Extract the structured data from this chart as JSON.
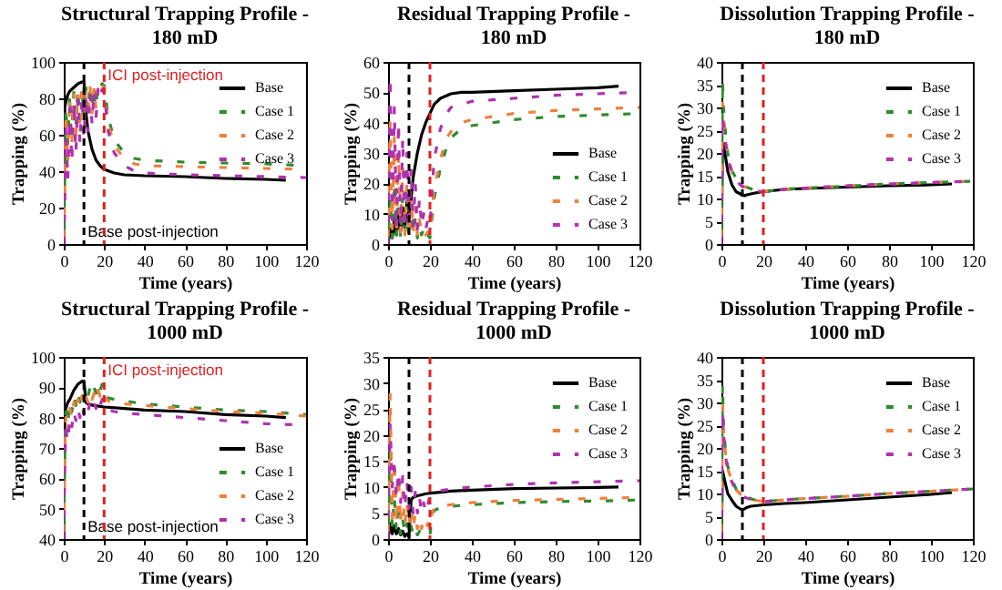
{
  "chart_data": [
    {
      "type": "line",
      "title": "Structural  Trapping Profile - 180 mD",
      "xlabel": "Time (years)",
      "ylabel": "Trapping (%)",
      "xlim": [
        0,
        120
      ],
      "xticks": [
        0,
        20,
        40,
        60,
        80,
        100,
        120
      ],
      "ylim": [
        0,
        100
      ],
      "yticks": [
        0,
        20,
        40,
        60,
        80,
        100
      ],
      "legend": "top right",
      "ref_lines": [
        {
          "axis": "x",
          "value": 10,
          "label": "Base post-injection",
          "color": "#000000",
          "line_style": "dashed"
        },
        {
          "axis": "x",
          "value": 20,
          "label": "ICI post-injection",
          "color": "#e02020",
          "line_style": "dashed"
        }
      ],
      "series": [
        {
          "name": "Base",
          "color": "#000000",
          "line_style": "solid",
          "x": [
            0,
            0.5,
            1,
            2,
            3,
            5,
            7,
            9,
            10,
            11,
            12,
            14,
            16,
            18,
            20,
            25,
            30,
            40,
            60,
            80,
            100,
            110
          ],
          "values": [
            0,
            75,
            78,
            82,
            84,
            86,
            88,
            89,
            89,
            72,
            62,
            52,
            46,
            43,
            41,
            39,
            38,
            37.5,
            37,
            36,
            35.5,
            35
          ]
        },
        {
          "name": "Case 1",
          "color": "#2e8b2e",
          "line_style": "dashed",
          "x": [
            0,
            0.5,
            1,
            2,
            3,
            4,
            5,
            6,
            7,
            8,
            9,
            10,
            11,
            12,
            13,
            14,
            15,
            16,
            17,
            18,
            19,
            20,
            22,
            25,
            30,
            35,
            40,
            60,
            80,
            100,
            120
          ],
          "values": [
            0,
            40,
            75,
            55,
            82,
            60,
            84,
            65,
            85,
            68,
            86,
            70,
            86,
            72,
            87,
            74,
            87,
            76,
            88,
            86,
            88,
            87,
            70,
            57,
            50,
            47,
            46,
            45,
            44.5,
            44,
            43
          ]
        },
        {
          "name": "Case 2",
          "color": "#f07f3c",
          "line_style": "dashed",
          "x": [
            0,
            0.5,
            1,
            2,
            3,
            4,
            5,
            6,
            7,
            8,
            9,
            10,
            11,
            12,
            13,
            14,
            15,
            16,
            17,
            18,
            19,
            20,
            22,
            25,
            30,
            35,
            40,
            60,
            80,
            100,
            120
          ],
          "values": [
            0,
            30,
            72,
            45,
            80,
            55,
            82,
            60,
            83,
            63,
            84,
            66,
            85,
            70,
            86,
            72,
            86,
            74,
            87,
            84,
            87,
            86,
            66,
            54,
            47,
            44,
            43,
            42.5,
            42,
            41.5,
            41
          ]
        },
        {
          "name": "Case 3",
          "color": "#b030b0",
          "line_style": "dashed",
          "x": [
            0,
            0.5,
            1,
            2,
            3,
            4,
            5,
            6,
            7,
            8,
            9,
            10,
            11,
            12,
            13,
            14,
            15,
            16,
            17,
            18,
            19,
            20,
            22,
            25,
            30,
            35,
            40,
            60,
            80,
            100,
            120
          ],
          "values": [
            0,
            20,
            65,
            35,
            75,
            45,
            78,
            50,
            80,
            55,
            81,
            58,
            82,
            62,
            83,
            66,
            84,
            70,
            85,
            80,
            85,
            83,
            62,
            50,
            43,
            40,
            39,
            38,
            37.5,
            37,
            36.5
          ]
        }
      ]
    },
    {
      "type": "line",
      "title": "Residual  Trapping Profile - 180 mD",
      "xlabel": "Time (years)",
      "ylabel": "Trapping (%)",
      "xlim": [
        0,
        120
      ],
      "xticks": [
        0,
        20,
        40,
        60,
        80,
        100,
        120
      ],
      "ylim": [
        0,
        60
      ],
      "yticks": [
        0,
        10,
        20,
        30,
        40,
        50,
        60
      ],
      "legend": "bottom right",
      "ref_lines": [
        {
          "axis": "x",
          "value": 10,
          "color": "#000000",
          "line_style": "dashed"
        },
        {
          "axis": "x",
          "value": 20,
          "color": "#e02020",
          "line_style": "dashed"
        }
      ],
      "series": [
        {
          "name": "Base",
          "color": "#000000",
          "line_style": "solid",
          "x": [
            0,
            1,
            2,
            3,
            4,
            5,
            6,
            7,
            8,
            9,
            10,
            11,
            12,
            14,
            16,
            18,
            20,
            22,
            25,
            30,
            35,
            40,
            60,
            80,
            100,
            110
          ],
          "values": [
            0,
            5,
            2,
            8,
            3,
            10,
            4,
            12,
            5,
            14,
            10,
            15,
            22,
            30,
            36,
            40,
            43,
            46,
            48,
            49.5,
            50,
            50,
            50.5,
            51,
            51.5,
            52
          ]
        },
        {
          "name": "Case 1",
          "color": "#2e8b2e",
          "line_style": "dashed",
          "x": [
            0,
            1,
            2,
            3,
            4,
            5,
            6,
            7,
            8,
            9,
            10,
            11,
            12,
            13,
            14,
            15,
            16,
            17,
            18,
            19,
            20,
            22,
            25,
            28,
            30,
            35,
            40,
            60,
            80,
            100,
            120
          ],
          "values": [
            0,
            15,
            2,
            20,
            3,
            18,
            2,
            15,
            3,
            12,
            2,
            10,
            3,
            8,
            2,
            6,
            3,
            5,
            2,
            3,
            2,
            15,
            25,
            32,
            35,
            38,
            39,
            41,
            42,
            42.5,
            43
          ]
        },
        {
          "name": "Case 2",
          "color": "#f07f3c",
          "line_style": "dashed",
          "x": [
            0,
            1,
            2,
            3,
            4,
            5,
            6,
            7,
            8,
            9,
            10,
            11,
            12,
            13,
            14,
            15,
            16,
            17,
            18,
            19,
            20,
            22,
            25,
            28,
            30,
            35,
            40,
            60,
            80,
            100,
            120
          ],
          "values": [
            0,
            40,
            5,
            35,
            3,
            30,
            4,
            25,
            3,
            20,
            3,
            15,
            4,
            12,
            3,
            8,
            4,
            5,
            3,
            4,
            3,
            18,
            28,
            35,
            37,
            40,
            41,
            43,
            44,
            44.5,
            45
          ]
        },
        {
          "name": "Case 3",
          "color": "#b030b0",
          "line_style": "dashed",
          "x": [
            0,
            1,
            2,
            3,
            4,
            5,
            6,
            7,
            8,
            9,
            10,
            11,
            12,
            13,
            14,
            15,
            16,
            17,
            18,
            19,
            20,
            22,
            25,
            28,
            30,
            35,
            40,
            60,
            80,
            100,
            120
          ],
          "values": [
            0,
            55,
            8,
            45,
            5,
            40,
            6,
            35,
            5,
            30,
            5,
            25,
            6,
            20,
            5,
            15,
            6,
            10,
            5,
            8,
            6,
            28,
            38,
            43,
            45,
            46,
            47,
            48,
            49,
            49.5,
            50
          ]
        }
      ]
    },
    {
      "type": "line",
      "title": "Dissolution  Trapping Profile - 180 mD",
      "xlabel": "Time (years)",
      "ylabel": "Trapping (%)",
      "xlim": [
        0,
        120
      ],
      "xticks": [
        0,
        20,
        40,
        60,
        80,
        100,
        120
      ],
      "ylim": [
        0,
        40
      ],
      "yticks": [
        0,
        5,
        10,
        15,
        20,
        25,
        30,
        35,
        40
      ],
      "legend": "top right",
      "ref_lines": [
        {
          "axis": "x",
          "value": 10,
          "color": "#000000",
          "line_style": "dashed"
        },
        {
          "axis": "x",
          "value": 20,
          "color": "#e02020",
          "line_style": "dashed"
        }
      ],
      "series": [
        {
          "name": "Base",
          "color": "#000000",
          "line_style": "solid",
          "x": [
            0,
            0.5,
            1,
            2,
            3,
            5,
            7,
            9,
            10,
            11,
            12,
            14,
            16,
            20,
            30,
            40,
            60,
            80,
            100,
            110
          ],
          "values": [
            0,
            20,
            22,
            19,
            16,
            13,
            11.5,
            11,
            10.8,
            10.6,
            10.8,
            11,
            11.2,
            11.5,
            12,
            12.2,
            12.5,
            12.8,
            13,
            13.2
          ]
        },
        {
          "name": "Case 1",
          "color": "#2e8b2e",
          "line_style": "dashed",
          "x": [
            0,
            0.5,
            1,
            2,
            3,
            5,
            7,
            9,
            10,
            12,
            15,
            18,
            20,
            25,
            30,
            40,
            60,
            80,
            100,
            120
          ],
          "values": [
            0,
            36,
            30,
            24,
            20,
            16,
            14.5,
            13.5,
            13,
            12.5,
            12,
            11.5,
            11.3,
            11.8,
            12,
            12.3,
            12.7,
            13.2,
            13.5,
            13.8
          ]
        },
        {
          "name": "Case 2",
          "color": "#f07f3c",
          "line_style": "dashed",
          "x": [
            0,
            0.5,
            1,
            2,
            3,
            5,
            7,
            9,
            10,
            12,
            15,
            18,
            20,
            25,
            30,
            40,
            60,
            80,
            100,
            120
          ],
          "values": [
            0,
            31,
            28,
            23,
            19.5,
            16,
            14.2,
            13.3,
            12.8,
            12.3,
            11.9,
            11.6,
            11.5,
            11.8,
            12,
            12.3,
            12.8,
            13.2,
            13.5,
            13.8
          ]
        },
        {
          "name": "Case 3",
          "color": "#b030b0",
          "line_style": "dashed",
          "x": [
            0,
            0.5,
            1,
            2,
            3,
            5,
            7,
            9,
            10,
            12,
            15,
            18,
            20,
            25,
            30,
            40,
            60,
            80,
            100,
            120
          ],
          "values": [
            0,
            28,
            26,
            22,
            19,
            15.5,
            14,
            13,
            12.6,
            12.2,
            11.8,
            11.6,
            11.5,
            11.8,
            12,
            12.3,
            12.8,
            13.2,
            13.5,
            13.8
          ]
        }
      ]
    },
    {
      "type": "line",
      "title": "Structural  Trapping Profile - 1000 mD",
      "xlabel": "Time (years)",
      "ylabel": "Trapping (%)",
      "xlim": [
        0,
        120
      ],
      "xticks": [
        0,
        20,
        40,
        60,
        80,
        100,
        120
      ],
      "ylim": [
        40,
        100
      ],
      "yticks": [
        40,
        50,
        60,
        70,
        80,
        90,
        100
      ],
      "legend": "bottom right",
      "ref_lines": [
        {
          "axis": "x",
          "value": 10,
          "label": "Base post-injection",
          "color": "#000000",
          "line_style": "dashed"
        },
        {
          "axis": "x",
          "value": 20,
          "label": "ICI post-injection",
          "color": "#e02020",
          "line_style": "dashed"
        }
      ],
      "series": [
        {
          "name": "Base",
          "color": "#000000",
          "line_style": "solid",
          "x": [
            0,
            0.5,
            1,
            2,
            3,
            5,
            7,
            9,
            10,
            11,
            12,
            15,
            20,
            30,
            40,
            60,
            80,
            100,
            110
          ],
          "values": [
            40,
            80,
            83,
            85,
            86,
            89,
            91,
            92,
            92,
            85,
            84.5,
            84,
            83.5,
            83,
            82.5,
            82,
            81,
            80.5,
            80
          ]
        },
        {
          "name": "Case 1",
          "color": "#2e8b2e",
          "line_style": "dashed",
          "x": [
            0,
            0.5,
            1,
            2,
            3,
            4,
            5,
            6,
            7,
            8,
            9,
            10,
            11,
            12,
            13,
            14,
            15,
            16,
            17,
            18,
            19,
            20,
            21,
            22,
            25,
            30,
            40,
            60,
            80,
            100,
            120
          ],
          "values": [
            40,
            75,
            82,
            78,
            85,
            82,
            87,
            84,
            88,
            85,
            89,
            86,
            89,
            87,
            90,
            88,
            90,
            88,
            91,
            89,
            91,
            91,
            87,
            86.5,
            86,
            85.5,
            84.5,
            83.5,
            82.5,
            82,
            81
          ]
        },
        {
          "name": "Case 2",
          "color": "#f07f3c",
          "line_style": "dashed",
          "x": [
            0,
            0.5,
            1,
            2,
            3,
            4,
            5,
            6,
            7,
            8,
            9,
            10,
            11,
            12,
            13,
            14,
            15,
            16,
            17,
            18,
            19,
            20,
            21,
            22,
            25,
            30,
            40,
            60,
            80,
            100,
            120
          ],
          "values": [
            40,
            70,
            80,
            75,
            83,
            80,
            85,
            82,
            86,
            83,
            87,
            84,
            87,
            85,
            88,
            86,
            88,
            86,
            89,
            87,
            89,
            89,
            86,
            85.5,
            85,
            84.5,
            84,
            83,
            82,
            81.5,
            80.5
          ]
        },
        {
          "name": "Case 3",
          "color": "#b030b0",
          "line_style": "dashed",
          "x": [
            0,
            0.5,
            1,
            2,
            3,
            4,
            5,
            6,
            7,
            8,
            9,
            10,
            11,
            12,
            13,
            14,
            15,
            16,
            17,
            18,
            19,
            20,
            21,
            22,
            25,
            30,
            40,
            60,
            80,
            100,
            120
          ],
          "values": [
            40,
            65,
            76,
            72,
            80,
            77,
            82,
            79,
            83,
            80,
            84,
            81,
            84,
            82,
            85,
            83,
            85,
            83,
            86,
            84,
            86,
            86,
            83,
            82.5,
            82,
            81.5,
            81,
            80,
            79,
            78,
            77.5
          ]
        }
      ]
    },
    {
      "type": "line",
      "title": "Residual  Trapping Profile - 1000 mD",
      "xlabel": "Time (years)",
      "ylabel": "Trapping (%)",
      "xlim": [
        0,
        120
      ],
      "xticks": [
        0,
        20,
        40,
        60,
        80,
        100,
        120
      ],
      "ylim": [
        0,
        35
      ],
      "yticks": [
        0,
        5,
        10,
        15,
        20,
        25,
        30,
        35
      ],
      "legend": "top right",
      "ref_lines": [
        {
          "axis": "x",
          "value": 10,
          "color": "#000000",
          "line_style": "dashed"
        },
        {
          "axis": "x",
          "value": 20,
          "color": "#e02020",
          "line_style": "dashed"
        }
      ],
      "series": [
        {
          "name": "Base",
          "color": "#000000",
          "line_style": "solid",
          "x": [
            0,
            1,
            2,
            3,
            4,
            5,
            6,
            7,
            8,
            9,
            10,
            11,
            12,
            14,
            16,
            18,
            20,
            25,
            30,
            40,
            60,
            80,
            100,
            110
          ],
          "values": [
            0,
            3,
            1,
            2.5,
            1,
            2,
            0.8,
            1.5,
            0.5,
            1,
            0.5,
            7.5,
            8,
            8.3,
            8.5,
            8.7,
            8.8,
            9,
            9.2,
            9.4,
            9.7,
            9.8,
            9.9,
            10
          ]
        },
        {
          "name": "Case 1",
          "color": "#2e8b2e",
          "line_style": "dashed",
          "x": [
            0,
            1,
            2,
            3,
            4,
            5,
            6,
            7,
            8,
            9,
            10,
            11,
            12,
            13,
            14,
            15,
            16,
            17,
            18,
            19,
            20,
            21,
            22,
            25,
            30,
            40,
            60,
            80,
            100,
            120
          ],
          "values": [
            0,
            18,
            2,
            8,
            1.5,
            5,
            1,
            4,
            1,
            3,
            0.8,
            2.5,
            0.8,
            2,
            0.8,
            1.5,
            0.8,
            1.2,
            0.8,
            1,
            0.8,
            4.5,
            5.5,
            6,
            6.3,
            6.6,
            7,
            7.2,
            7.3,
            7.5
          ]
        },
        {
          "name": "Case 2",
          "color": "#f07f3c",
          "line_style": "dashed",
          "x": [
            0,
            1,
            2,
            3,
            4,
            5,
            6,
            7,
            8,
            9,
            10,
            11,
            12,
            13,
            14,
            15,
            16,
            17,
            18,
            19,
            20,
            21,
            22,
            25,
            30,
            40,
            60,
            80,
            100,
            120
          ],
          "values": [
            0,
            28,
            4,
            15,
            3,
            12,
            3,
            9,
            2.5,
            7,
            2.5,
            6,
            2,
            5,
            2,
            4,
            2,
            3.5,
            2,
            3,
            2,
            5,
            6,
            6.3,
            6.6,
            7,
            7.4,
            7.6,
            7.8,
            8
          ]
        },
        {
          "name": "Case 3",
          "color": "#b030b0",
          "line_style": "dashed",
          "x": [
            0,
            1,
            2,
            3,
            4,
            5,
            6,
            7,
            8,
            9,
            10,
            11,
            12,
            13,
            14,
            15,
            16,
            17,
            18,
            19,
            20,
            21,
            22,
            25,
            30,
            40,
            60,
            80,
            100,
            120
          ],
          "values": [
            0,
            22,
            10,
            14,
            8,
            13,
            7,
            12,
            6,
            11,
            6,
            10,
            5,
            9,
            5,
            8,
            5,
            7,
            5,
            6.5,
            8.5,
            8.8,
            9,
            9.3,
            9.6,
            10,
            10.5,
            10.8,
            11,
            11.2
          ]
        }
      ]
    },
    {
      "type": "line",
      "title": "Dissolution  Trapping Profile - 1000 mD",
      "xlabel": "Time (years)",
      "ylabel": "Trapping (%)",
      "xlim": [
        0,
        120
      ],
      "xticks": [
        0,
        20,
        40,
        60,
        80,
        100,
        120
      ],
      "ylim": [
        0,
        40
      ],
      "yticks": [
        0,
        5,
        10,
        15,
        20,
        25,
        30,
        35,
        40
      ],
      "legend": "top right",
      "ref_lines": [
        {
          "axis": "x",
          "value": 10,
          "color": "#000000",
          "line_style": "dashed"
        },
        {
          "axis": "x",
          "value": 20,
          "color": "#e02020",
          "line_style": "dashed"
        }
      ],
      "series": [
        {
          "name": "Base",
          "color": "#000000",
          "line_style": "solid",
          "x": [
            0,
            0.5,
            1,
            2,
            3,
            5,
            7,
            9,
            10,
            11,
            12,
            14,
            16,
            20,
            30,
            40,
            60,
            80,
            100,
            110
          ],
          "values": [
            0,
            15,
            14,
            12,
            10,
            8.5,
            7.2,
            6.6,
            6.5,
            6.6,
            6.9,
            7.2,
            7.3,
            7.5,
            7.8,
            8,
            8.6,
            9.2,
            9.8,
            10.2
          ]
        },
        {
          "name": "Case 1",
          "color": "#2e8b2e",
          "line_style": "dashed",
          "x": [
            0,
            0.5,
            1,
            2,
            3,
            5,
            7,
            9,
            10,
            12,
            15,
            18,
            20,
            25,
            30,
            40,
            60,
            80,
            100,
            120
          ],
          "values": [
            0,
            34,
            25,
            19,
            16,
            13,
            11,
            10,
            9.6,
            9.2,
            8.7,
            8.4,
            8.3,
            8.4,
            8.6,
            8.9,
            9.4,
            10,
            10.5,
            11
          ]
        },
        {
          "name": "Case 2",
          "color": "#f07f3c",
          "line_style": "dashed",
          "x": [
            0,
            0.5,
            1,
            2,
            3,
            5,
            7,
            9,
            10,
            12,
            15,
            18,
            20,
            25,
            30,
            40,
            60,
            80,
            100,
            120
          ],
          "values": [
            0,
            30,
            24,
            18.5,
            15.5,
            12.7,
            10.8,
            9.9,
            9.5,
            9.1,
            8.6,
            8.4,
            8.3,
            8.4,
            8.6,
            8.9,
            9.4,
            10,
            10.5,
            11
          ]
        },
        {
          "name": "Case 3",
          "color": "#b030b0",
          "line_style": "dashed",
          "x": [
            0,
            0.5,
            1,
            2,
            3,
            5,
            7,
            9,
            10,
            12,
            15,
            18,
            20,
            25,
            30,
            40,
            60,
            80,
            100,
            120
          ],
          "values": [
            0,
            28,
            23,
            18,
            15,
            12.5,
            10.7,
            9.8,
            9.4,
            9,
            8.6,
            8.3,
            8.2,
            8.4,
            8.6,
            8.9,
            9.4,
            10,
            10.5,
            11
          ]
        }
      ]
    }
  ]
}
